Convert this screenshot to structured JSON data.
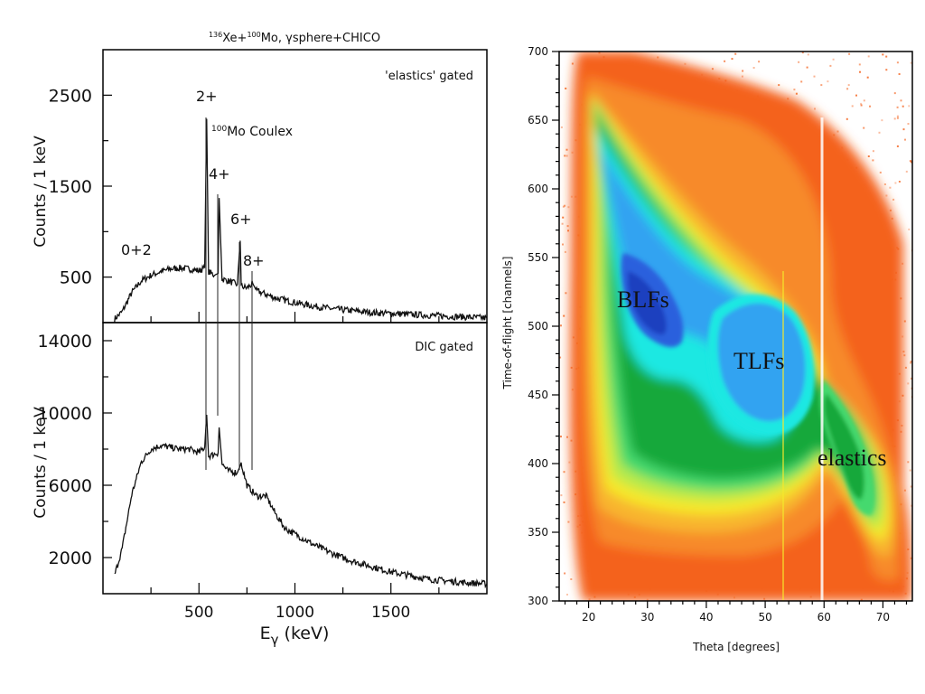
{
  "chart_data": [
    {
      "type": "line",
      "title_parts": {
        "pre1": "136",
        "t1": "Xe+",
        "pre2": "100",
        "t2": "Mo, γsphere+CHICO"
      },
      "xlabel": "Eγ (keV)",
      "xlabel_main": "E",
      "xlabel_sub": "γ",
      "xlabel_unit": " (keV)",
      "x_ticks": [
        "500",
        "1000",
        "1500"
      ],
      "xlim": [
        0,
        2000
      ],
      "panels": [
        {
          "name": "'elastics' gated",
          "ylabel": "Counts / 1 keV",
          "ylim": [
            0,
            3000
          ],
          "y_ticks": [
            "500",
            "1500",
            "2500"
          ],
          "peak_labels": {
            "p2": "2+",
            "p4": "4+",
            "p6": "6+",
            "p8": "8+",
            "p0": "0+2",
            "coulex_pre": "100",
            "coulex_text": "Mo Coulex"
          },
          "x": [
            60,
            100,
            150,
            200,
            250,
            300,
            350,
            400,
            450,
            500,
            530,
            540,
            550,
            580,
            600,
            605,
            620,
            650,
            700,
            715,
            720,
            750,
            780,
            800,
            850,
            900,
            1000,
            1100,
            1200,
            1300,
            1400,
            1500,
            1600,
            1700,
            1800,
            1900,
            2000
          ],
          "y": [
            40,
            120,
            330,
            460,
            520,
            560,
            590,
            600,
            590,
            570,
            600,
            2240,
            560,
            520,
            540,
            1370,
            480,
            460,
            420,
            900,
            400,
            380,
            430,
            350,
            310,
            270,
            220,
            180,
            150,
            130,
            110,
            100,
            90,
            80,
            70,
            60,
            50
          ]
        },
        {
          "name": "DIC gated",
          "ylabel": "Counts / 1 keV",
          "ylim": [
            0,
            15000
          ],
          "y_ticks": [
            "2000",
            "6000",
            "10000",
            "14000"
          ],
          "x": [
            60,
            100,
            150,
            200,
            250,
            300,
            350,
            400,
            450,
            500,
            530,
            540,
            550,
            600,
            605,
            620,
            650,
            700,
            720,
            750,
            800,
            850,
            900,
            950,
            1000,
            1100,
            1200,
            1300,
            1400,
            1500,
            1600,
            1700,
            1800,
            1900,
            2000
          ],
          "y": [
            1000,
            2500,
            5500,
            7300,
            8000,
            8200,
            8100,
            8000,
            8000,
            7800,
            8100,
            9900,
            7600,
            7800,
            9200,
            7200,
            6800,
            6700,
            7200,
            6000,
            5400,
            5400,
            4400,
            3600,
            3300,
            2700,
            2200,
            1800,
            1500,
            1200,
            1000,
            800,
            700,
            600,
            550
          ]
        }
      ]
    },
    {
      "type": "heatmap",
      "xlabel": "Theta [degrees]",
      "ylabel": "Time-of-flight [channels]",
      "xlim": [
        15,
        75
      ],
      "ylim": [
        300,
        700
      ],
      "x_ticks": [
        "20",
        "30",
        "40",
        "50",
        "60",
        "70"
      ],
      "y_ticks": [
        "300",
        "350",
        "400",
        "450",
        "500",
        "550",
        "600",
        "650",
        "700"
      ],
      "annotations": [
        "BLFs",
        "TLFs",
        "elastics"
      ],
      "colors": {
        "orange_dark": "#f4621d",
        "orange": "#f78a2b",
        "yellow_orange": "#f8b52e",
        "yellow": "#f6e82c",
        "lime": "#b8ea4c",
        "light_green": "#45d96e",
        "green": "#15a83b",
        "cyan": "#1fe8e2",
        "light_blue": "#33a3f1",
        "blue": "#2b60dd",
        "dark_blue": "#1f3fbf"
      }
    }
  ]
}
